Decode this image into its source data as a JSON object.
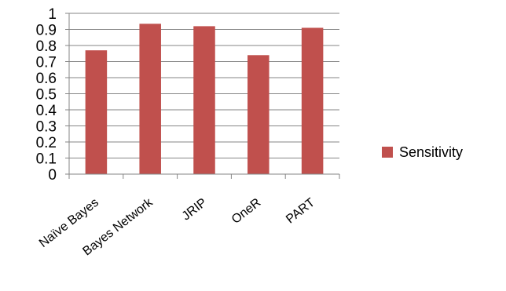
{
  "chart_data": {
    "type": "bar",
    "categories": [
      "Naïve Bayes",
      "Bayes Network",
      "JRIP",
      "OneR",
      "PART"
    ],
    "series": [
      {
        "name": "Sensitivity",
        "values": [
          0.77,
          0.935,
          0.92,
          0.74,
          0.91
        ]
      }
    ],
    "ylim": [
      0,
      1
    ],
    "yticks": [
      "0",
      "0.1",
      "0.2",
      "0.3",
      "0.4",
      "0.5",
      "0.6",
      "0.7",
      "0.8",
      "0.9",
      "1"
    ],
    "grid": true,
    "legend_position": "right",
    "colors": {
      "bar": "#C0504D",
      "grid": "#868686",
      "axis": "#868686"
    }
  }
}
